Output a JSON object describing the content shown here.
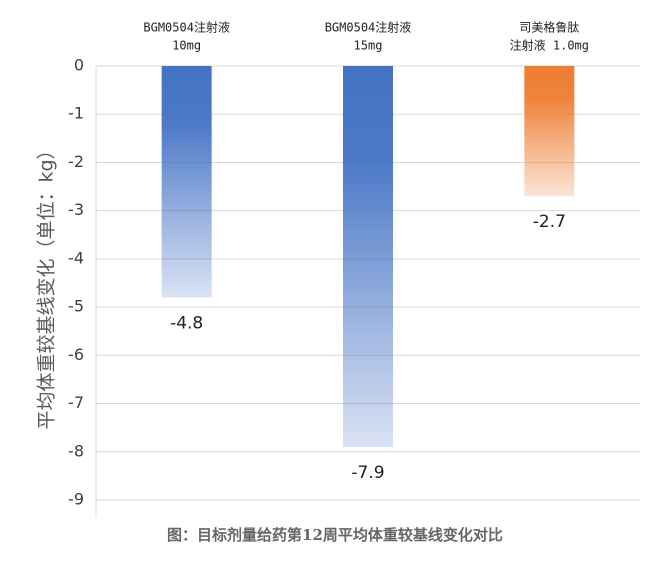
{
  "chart_data": {
    "type": "bar",
    "y_label": "平均体重较基线变化（单位：kg）",
    "caption": "图：目标剂量给药第12周平均体重较基线变化对比",
    "categories": [
      [
        "BGM0504注射液",
        "10mg"
      ],
      [
        "BGM0504注射液",
        "15mg"
      ],
      [
        "司美格鲁肽",
        "注射液 1.0mg"
      ]
    ],
    "values": [
      -4.8,
      -7.9,
      -2.7
    ],
    "colors": [
      "#4472c4",
      "#4472c4",
      "#ed7d31"
    ],
    "ylim": [
      -9,
      0
    ],
    "yticks": [
      0,
      -1,
      -2,
      -3,
      -4,
      -5,
      -6,
      -7,
      -8,
      -9
    ],
    "grid": true
  }
}
